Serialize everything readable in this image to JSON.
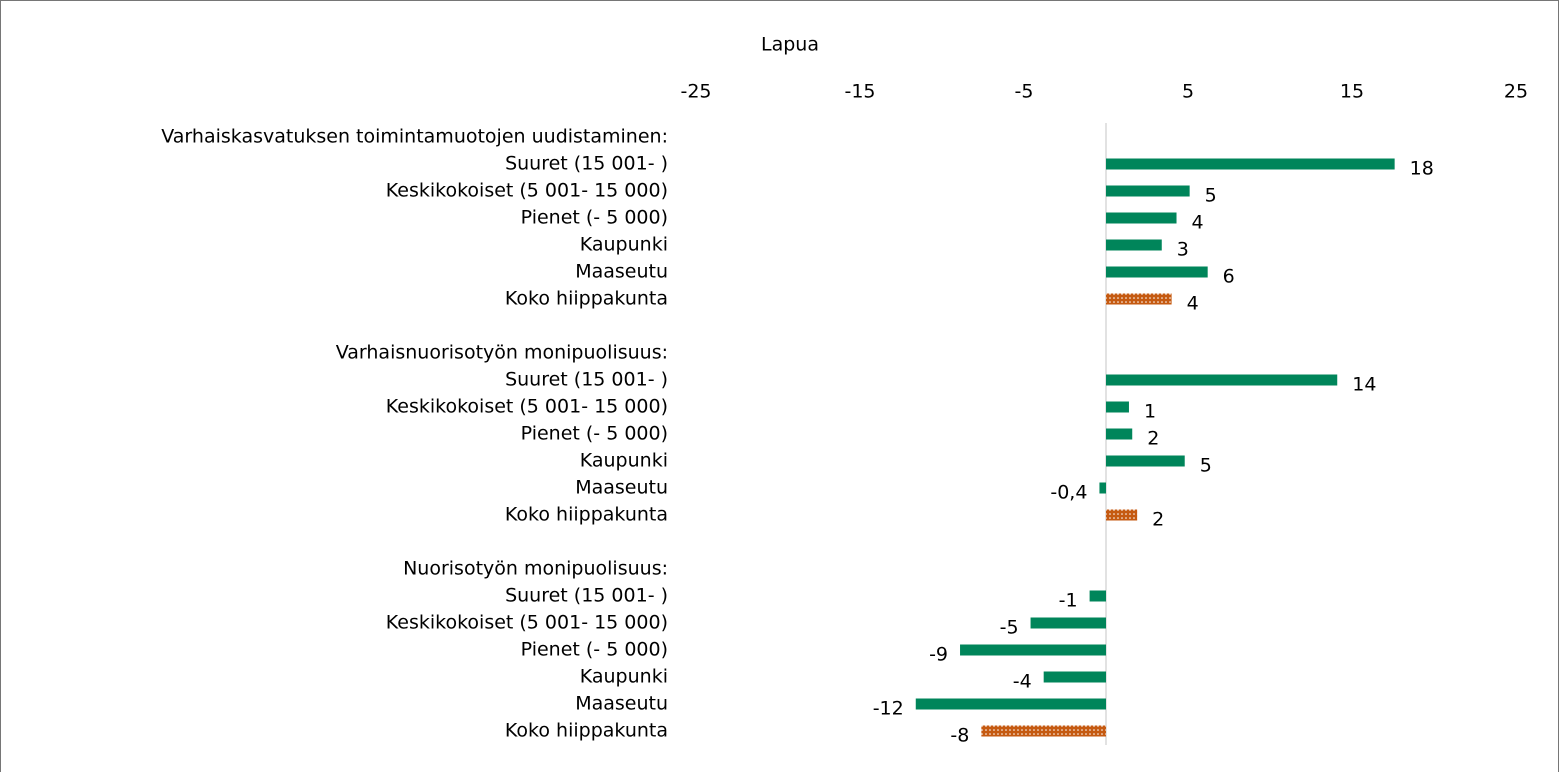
{
  "chart_data": {
    "type": "bar",
    "orientation": "horizontal",
    "title": "Lapua",
    "categories": [
      "Varhaiskasvatuksen toimintamuotojen uudistaminen:",
      "Suuret (15 001- )",
      "Keskikokoiset (5 001- 15 000)",
      "Pienet (- 5 000)",
      "Kaupunki",
      "Maaseutu",
      "Koko hiippakunta",
      null,
      "Varhaisnuorisotyön monipuolisuus:",
      "Suuret (15 001- )",
      "Keskikokoiset (5 001- 15 000)",
      "Pienet (- 5 000)",
      "Kaupunki",
      "Maaseutu",
      "Koko hiippakunta",
      null,
      "Nuorisotyön monipuolisuus:",
      "Suuret (15 001- )",
      "Keskikokoiset (5 001- 15 000)",
      "Pienet (- 5 000)",
      "Kaupunki",
      "Maaseutu",
      "Koko hiippakunta"
    ],
    "values": [
      null,
      17.6,
      5.1,
      4.3,
      3.4,
      6.2,
      4.0,
      null,
      null,
      14.1,
      1.4,
      1.6,
      4.8,
      -0.4,
      1.9,
      null,
      null,
      -1.0,
      -4.6,
      -8.9,
      -3.8,
      -11.6,
      -7.6
    ],
    "value_labels": [
      null,
      "18",
      "5",
      "4",
      "3",
      "6",
      "4",
      null,
      null,
      "14",
      "1",
      "2",
      "5",
      "-0,4",
      "2",
      null,
      null,
      "-1",
      "-5",
      "-9",
      "-4",
      "-12",
      "-8"
    ],
    "colors": [
      null,
      "#00855a",
      "#00855a",
      "#00855a",
      "#00855a",
      "#00855a",
      "#c55a11",
      null,
      null,
      "#00855a",
      "#00855a",
      "#00855a",
      "#00855a",
      "#00855a",
      "#c55a11",
      null,
      null,
      "#00855a",
      "#00855a",
      "#00855a",
      "#00855a",
      "#00855a",
      "#c55a11"
    ],
    "bar_patterns": [
      null,
      "solid",
      "solid",
      "solid",
      "solid",
      "solid",
      "dotted",
      null,
      null,
      "solid",
      "solid",
      "solid",
      "solid",
      "solid",
      "dotted",
      null,
      null,
      "solid",
      "solid",
      "solid",
      "solid",
      "solid",
      "dotted"
    ],
    "xlim": [
      -25,
      25
    ],
    "xticks": [
      -25,
      -15,
      -5,
      5,
      15,
      25
    ]
  }
}
